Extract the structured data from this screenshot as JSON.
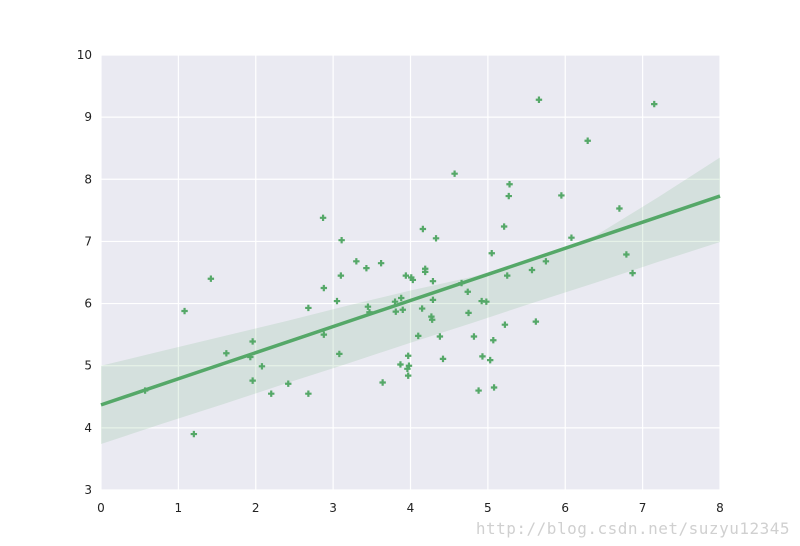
{
  "chart_data": {
    "type": "scatter",
    "title": "",
    "xlabel": "",
    "ylabel": "",
    "xlim": [
      0,
      8
    ],
    "ylim": [
      3,
      10
    ],
    "x_ticks": [
      0,
      1,
      2,
      3,
      4,
      5,
      6,
      7,
      8
    ],
    "y_ticks": [
      3,
      4,
      5,
      6,
      7,
      8,
      9,
      10
    ],
    "grid": true,
    "colors": {
      "background": "#EAEAF2",
      "grid": "#FFFFFF",
      "points": "#55A868",
      "regression_line": "#55A868",
      "confidence_band": "#55A868"
    },
    "points": [
      [
        0.57,
        4.6
      ],
      [
        1.08,
        5.88
      ],
      [
        1.2,
        3.9
      ],
      [
        1.42,
        6.4
      ],
      [
        1.62,
        5.2
      ],
      [
        1.93,
        5.14
      ],
      [
        1.96,
        5.39
      ],
      [
        1.96,
        4.76
      ],
      [
        2.08,
        4.99
      ],
      [
        2.2,
        4.55
      ],
      [
        2.42,
        4.71
      ],
      [
        2.68,
        5.93
      ],
      [
        2.68,
        4.55
      ],
      [
        2.87,
        7.38
      ],
      [
        2.88,
        6.25
      ],
      [
        2.88,
        5.5
      ],
      [
        3.05,
        6.04
      ],
      [
        3.08,
        5.19
      ],
      [
        3.1,
        6.45
      ],
      [
        3.11,
        7.02
      ],
      [
        3.3,
        6.68
      ],
      [
        3.43,
        6.57
      ],
      [
        3.45,
        5.95
      ],
      [
        3.47,
        5.86
      ],
      [
        3.62,
        6.65
      ],
      [
        3.64,
        4.73
      ],
      [
        3.8,
        6.03
      ],
      [
        3.81,
        5.87
      ],
      [
        3.87,
        5.02
      ],
      [
        3.88,
        6.09
      ],
      [
        3.9,
        5.9
      ],
      [
        3.94,
        6.45
      ],
      [
        3.96,
        4.95
      ],
      [
        3.97,
        5.16
      ],
      [
        3.97,
        4.84
      ],
      [
        3.98,
        5.0
      ],
      [
        4.01,
        6.42
      ],
      [
        4.03,
        6.38
      ],
      [
        4.1,
        5.48
      ],
      [
        4.15,
        5.92
      ],
      [
        4.16,
        7.2
      ],
      [
        4.19,
        6.51
      ],
      [
        4.19,
        6.56
      ],
      [
        4.27,
        5.79
      ],
      [
        4.28,
        5.74
      ],
      [
        4.29,
        6.36
      ],
      [
        4.29,
        6.06
      ],
      [
        4.33,
        7.05
      ],
      [
        4.38,
        5.47
      ],
      [
        4.42,
        5.11
      ],
      [
        4.57,
        8.09
      ],
      [
        4.66,
        6.33
      ],
      [
        4.74,
        6.19
      ],
      [
        4.75,
        5.85
      ],
      [
        4.82,
        5.47
      ],
      [
        4.88,
        4.6
      ],
      [
        4.92,
        6.04
      ],
      [
        4.93,
        5.15
      ],
      [
        4.98,
        6.03
      ],
      [
        5.03,
        5.09
      ],
      [
        5.05,
        6.81
      ],
      [
        5.07,
        5.41
      ],
      [
        5.08,
        4.65
      ],
      [
        5.21,
        7.24
      ],
      [
        5.22,
        5.66
      ],
      [
        5.25,
        6.45
      ],
      [
        5.27,
        7.73
      ],
      [
        5.28,
        7.92
      ],
      [
        5.57,
        6.54
      ],
      [
        5.62,
        5.71
      ],
      [
        5.66,
        9.28
      ],
      [
        5.75,
        6.68
      ],
      [
        5.95,
        7.74
      ],
      [
        6.08,
        7.06
      ],
      [
        6.29,
        8.62
      ],
      [
        6.7,
        7.53
      ],
      [
        6.79,
        6.79
      ],
      [
        6.87,
        6.49
      ],
      [
        7.15,
        9.21
      ]
    ],
    "regression": {
      "x_range": [
        0,
        8
      ],
      "intercept": 4.37,
      "slope": 0.42,
      "ci_lower": [
        3.74,
        4.07,
        4.39,
        4.72,
        5.04,
        5.37,
        5.69,
        6.02,
        6.34,
        6.67,
        6.99
      ],
      "ci_upper": [
        5.0,
        5.24,
        5.48,
        5.72,
        5.97,
        6.21,
        6.43,
        6.72,
        7.1,
        7.71,
        8.35
      ]
    }
  },
  "watermark": "http://blog.csdn.net/suzyu12345"
}
